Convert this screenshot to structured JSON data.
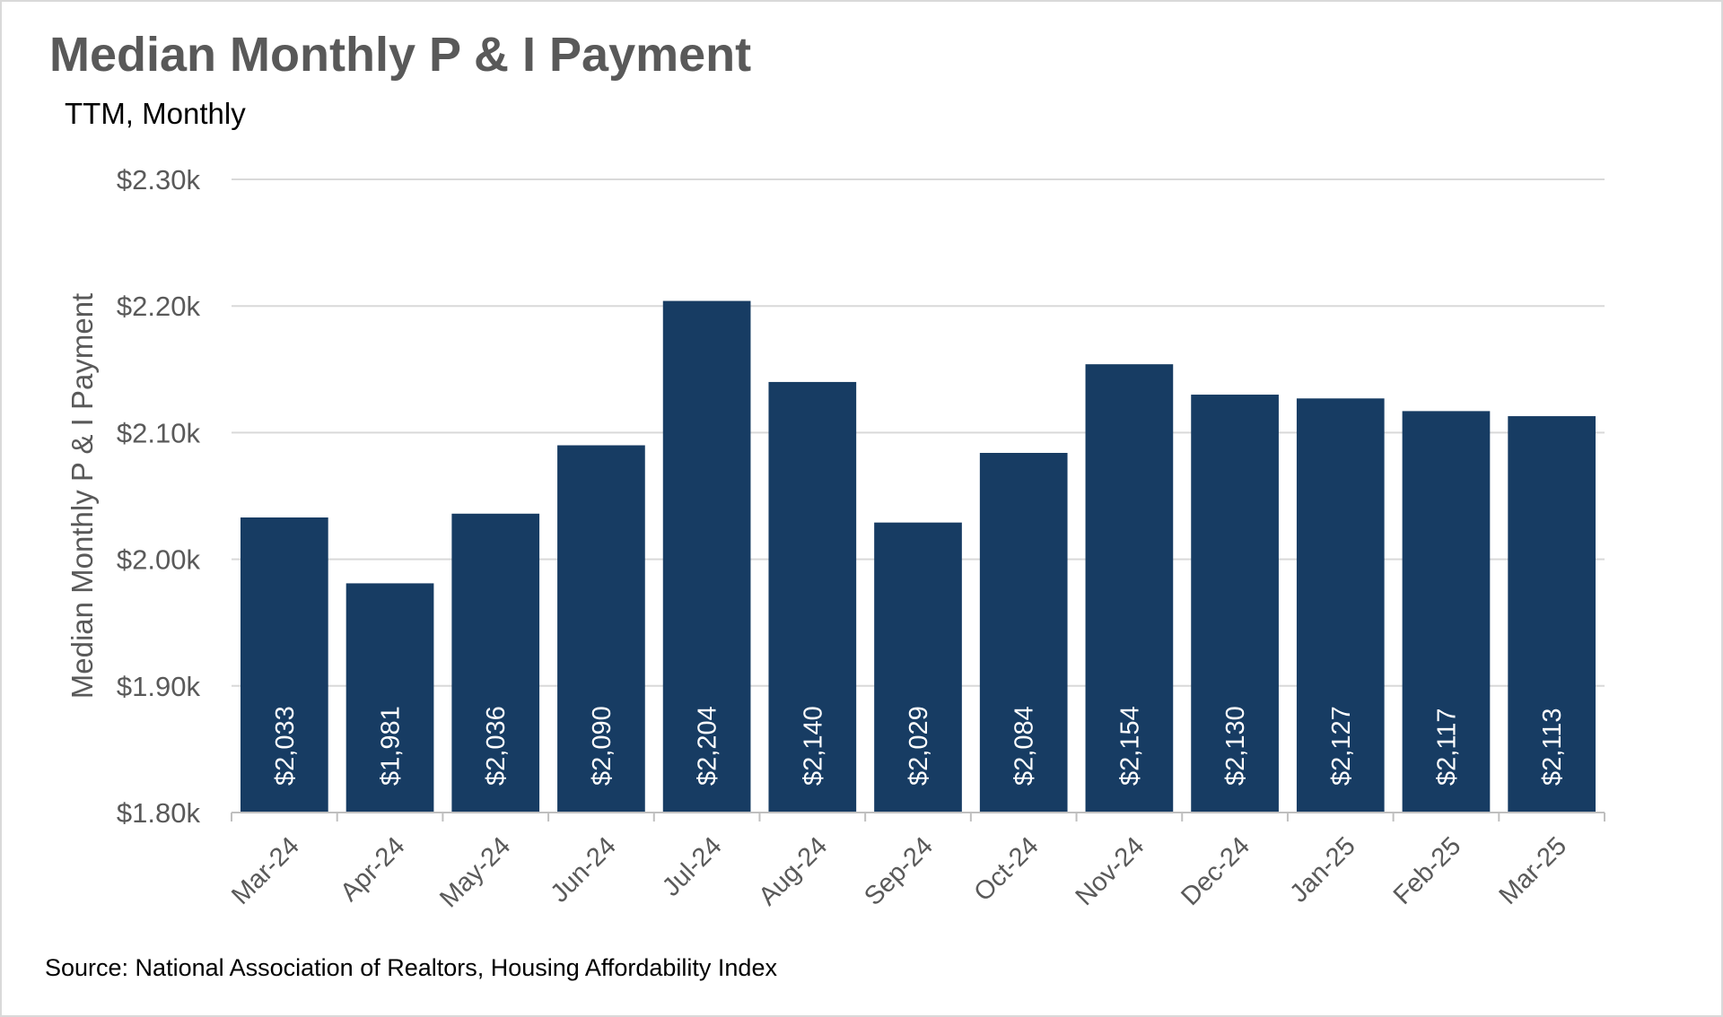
{
  "chart_data": {
    "type": "bar",
    "title": "Median Monthly P & I Payment",
    "subtitle": "TTM, Monthly",
    "xlabel": "",
    "ylabel": "Median Monthly P & I Payment",
    "source": "Source: National Association of Realtors, Housing Affordability Index",
    "categories": [
      "Mar-24",
      "Apr-24",
      "May-24",
      "Jun-24",
      "Jul-24",
      "Aug-24",
      "Sep-24",
      "Oct-24",
      "Nov-24",
      "Dec-24",
      "Jan-25",
      "Feb-25",
      "Mar-25"
    ],
    "values": [
      2033,
      1981,
      2036,
      2090,
      2204,
      2140,
      2029,
      2084,
      2154,
      2130,
      2127,
      2117,
      2113
    ],
    "data_labels": [
      "$2,033",
      "$1,981",
      "$2,036",
      "$2,090",
      "$2,204",
      "$2,140",
      "$2,029",
      "$2,084",
      "$2,154",
      "$2,130",
      "$2,127",
      "$2,117",
      "$2,113"
    ],
    "ylim": [
      1800,
      2300
    ],
    "yticks": [
      1800,
      1900,
      2000,
      2100,
      2200,
      2300
    ],
    "ytick_labels": [
      "$1.80k",
      "$1.90k",
      "$2.00k",
      "$2.10k",
      "$2.20k",
      "$2.30k"
    ],
    "bar_color": "#173c63",
    "grid": true,
    "legend": "none"
  }
}
